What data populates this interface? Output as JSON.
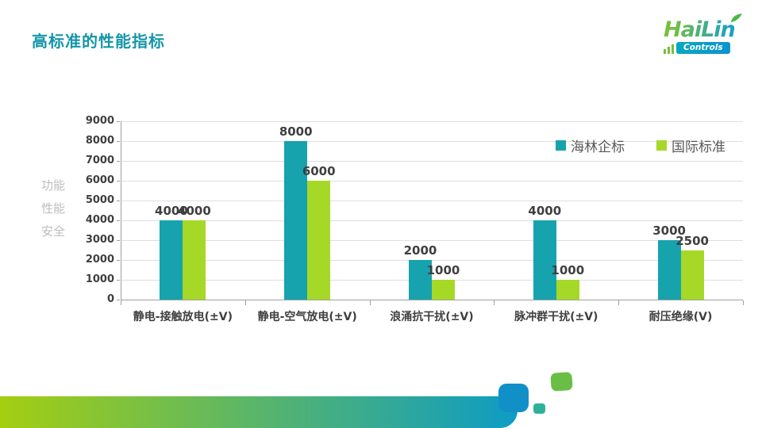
{
  "header": {
    "title": "高标准的性能指标"
  },
  "logo": {
    "brand": "HaiLin",
    "subtitle": "Controls"
  },
  "side_labels": {
    "items": [
      "功能",
      "性能",
      "安全"
    ]
  },
  "chart_data": {
    "type": "bar",
    "categories": [
      "静电-接触放电(±V)",
      "静电-空气放电(±V)",
      "浪涌抗干扰(±V)",
      "脉冲群干扰(±V)",
      "耐压绝缘(V)"
    ],
    "series": [
      {
        "name": "海林企标",
        "color": "#16a3ad",
        "values": [
          4000,
          8000,
          2000,
          4000,
          3000
        ]
      },
      {
        "name": "国际标准",
        "color": "#a5d827",
        "values": [
          4000,
          6000,
          1000,
          1000,
          2500
        ]
      }
    ],
    "title": "",
    "xlabel": "",
    "ylabel": "",
    "ylim": [
      0,
      9000
    ],
    "ytick_step": 1000,
    "grid": true,
    "value_labels": true,
    "legend_position": "top-right"
  },
  "colors": {
    "title": "#1496a8",
    "axis_text": "#3f3f3f",
    "legend_text": "#595959",
    "side_text": "#bdbdbd",
    "gridline": "#dedede",
    "axis_line": "#9f9f9f",
    "footer_gradient_start": "#a4ce11",
    "footer_gradient_end": "#0d9cc4",
    "footer_square_blue": "#1190c8",
    "footer_square_teal": "#2eb09b",
    "footer_square_green": "#6abe46"
  }
}
